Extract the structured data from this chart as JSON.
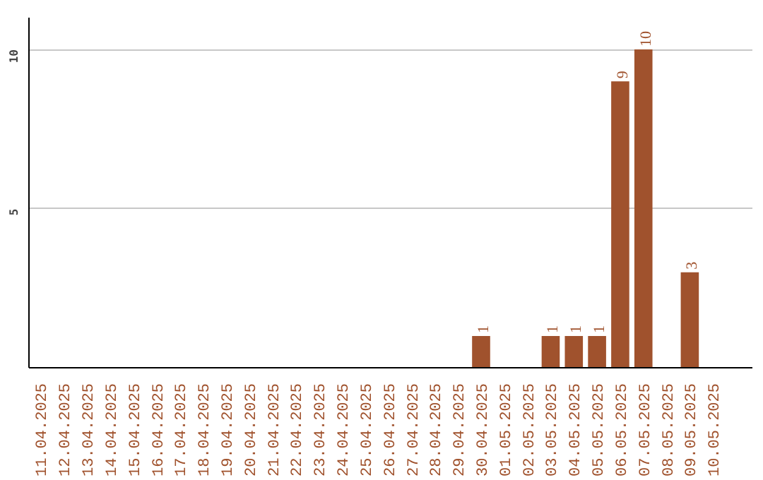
{
  "chart_data": {
    "type": "bar",
    "categories": [
      "11.04.2025",
      "12.04.2025",
      "13.04.2025",
      "14.04.2025",
      "15.04.2025",
      "16.04.2025",
      "17.04.2025",
      "18.04.2025",
      "19.04.2025",
      "20.04.2025",
      "21.04.2025",
      "22.04.2025",
      "23.04.2025",
      "24.04.2025",
      "25.04.2025",
      "26.04.2025",
      "27.04.2025",
      "28.04.2025",
      "29.04.2025",
      "30.04.2025",
      "01.05.2025",
      "02.05.2025",
      "03.05.2025",
      "04.05.2025",
      "05.05.2025",
      "06.05.2025",
      "07.05.2025",
      "08.05.2025",
      "09.05.2025",
      "10.05.2025"
    ],
    "values": [
      0,
      0,
      0,
      0,
      0,
      0,
      0,
      0,
      0,
      0,
      0,
      0,
      0,
      0,
      0,
      0,
      0,
      0,
      0,
      1,
      0,
      0,
      1,
      1,
      1,
      9,
      10,
      0,
      3,
      0
    ],
    "value_labels": [
      null,
      null,
      null,
      null,
      null,
      null,
      null,
      null,
      null,
      null,
      null,
      null,
      null,
      null,
      null,
      null,
      null,
      null,
      null,
      "1",
      null,
      null,
      "1",
      "1",
      "1",
      "9",
      "10",
      null,
      "3",
      null
    ],
    "color": "#a0522d",
    "ylim": [
      0,
      11
    ],
    "yticks": [
      5,
      10
    ],
    "grid": "y"
  }
}
